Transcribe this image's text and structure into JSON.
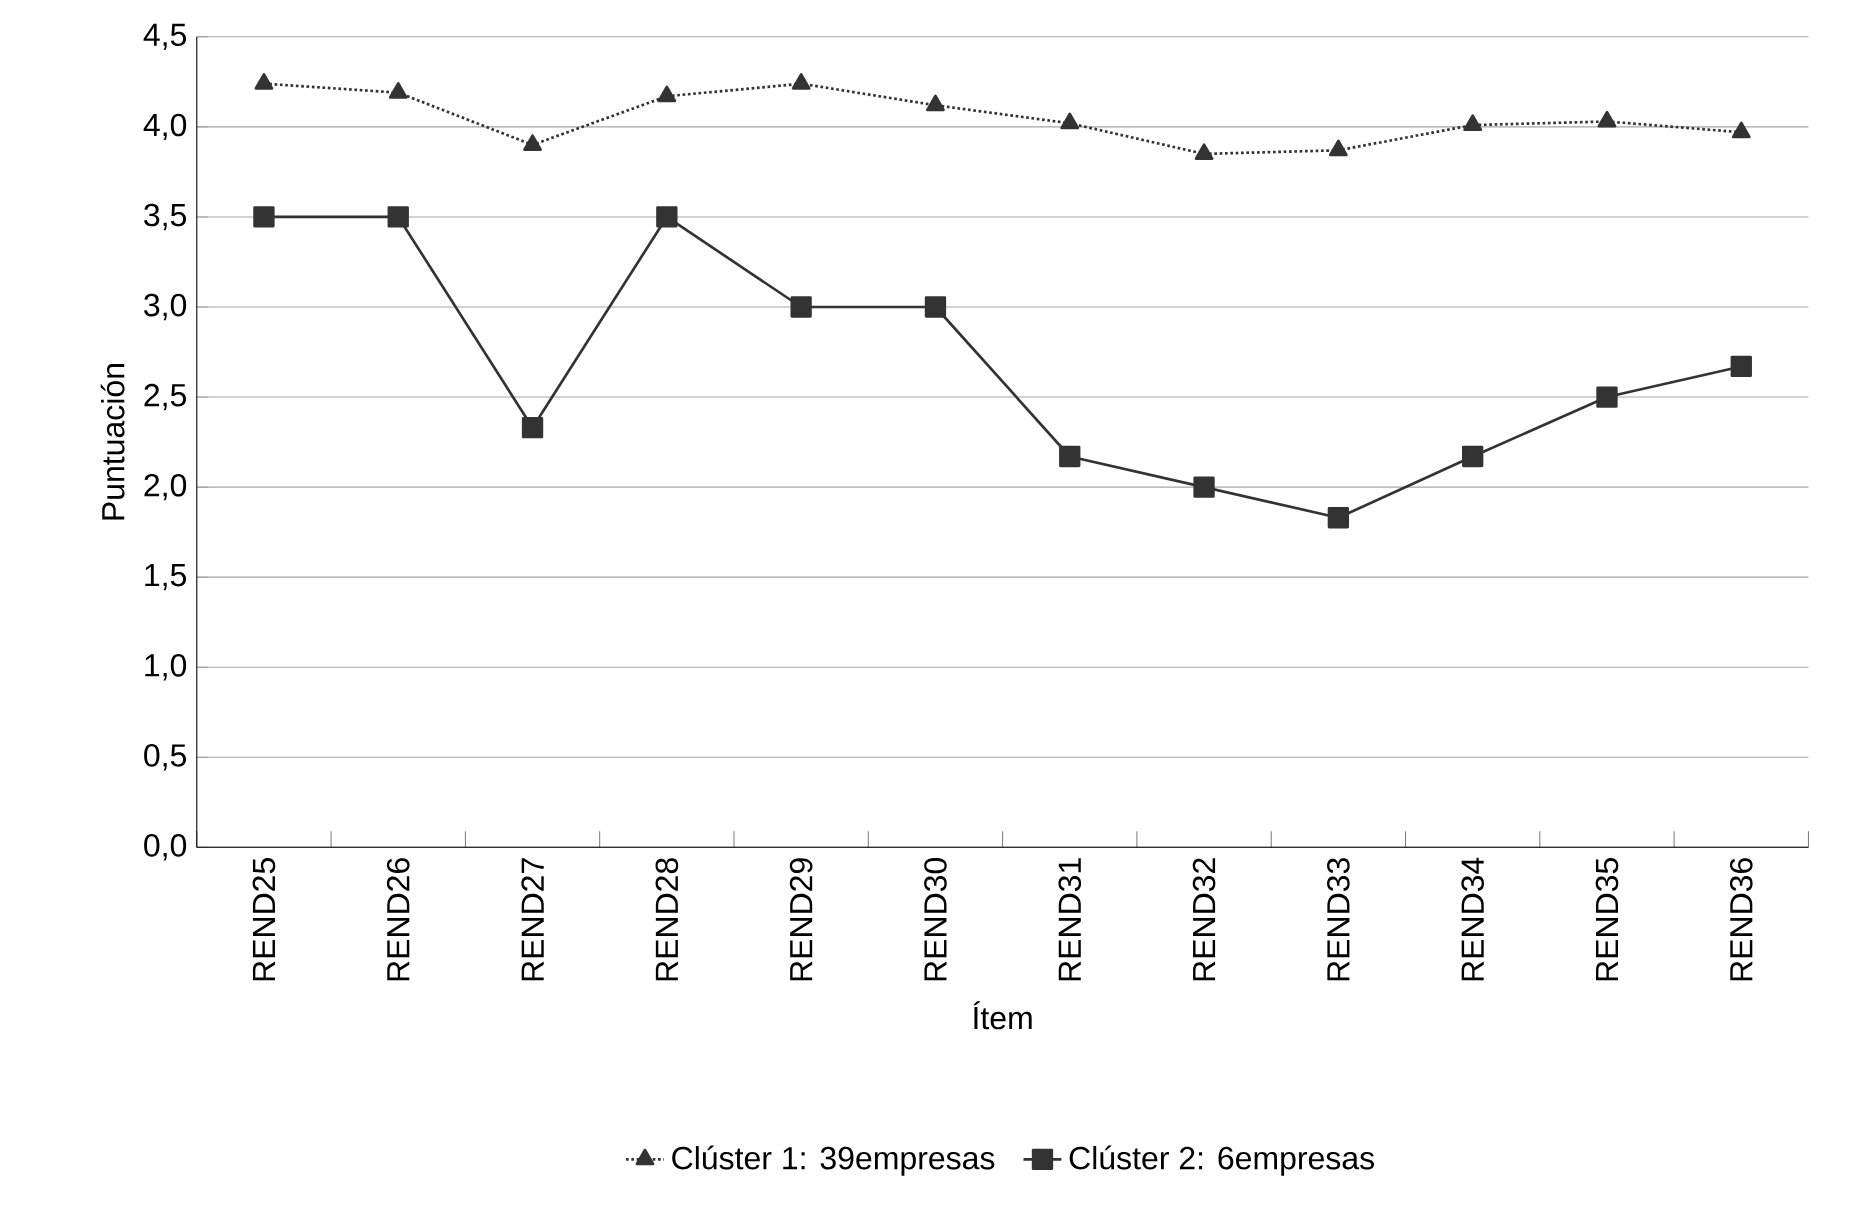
{
  "chart_data": {
    "type": "line",
    "xlabel": "Ítem",
    "ylabel": "Puntuación",
    "categories": [
      "REND25",
      "REND26",
      "REND27",
      "REND28",
      "REND29",
      "REND30",
      "REND31",
      "REND32",
      "REND33",
      "REND34",
      "REND35",
      "REND36"
    ],
    "series": [
      {
        "name": "Clúster 1: 39empresas",
        "color": "#333333",
        "marker": "triangle",
        "line_style": "dotted",
        "values": [
          4.24,
          4.19,
          3.9,
          4.17,
          4.24,
          4.12,
          4.02,
          3.85,
          3.87,
          4.01,
          4.03,
          3.97
        ]
      },
      {
        "name": "Clúster 2: 6empresas",
        "color": "#333333",
        "marker": "square",
        "line_style": "solid",
        "values": [
          3.5,
          3.5,
          2.33,
          3.5,
          3.0,
          3.0,
          2.17,
          2.0,
          1.83,
          2.17,
          2.5,
          2.67
        ]
      }
    ],
    "ylim": [
      0,
      4.5
    ],
    "yticks": [
      {
        "value": 0,
        "label": "0,0"
      },
      {
        "value": 0.5,
        "label": "0,5"
      },
      {
        "value": 1,
        "label": "1,0"
      },
      {
        "value": 1.5,
        "label": "1,5"
      },
      {
        "value": 2,
        "label": "2,0"
      },
      {
        "value": 2.5,
        "label": "2,5"
      },
      {
        "value": 3,
        "label": "3,0"
      },
      {
        "value": 3.5,
        "label": "3,5"
      },
      {
        "value": 4,
        "label": "4,0"
      },
      {
        "value": 4.5,
        "label": "4,5"
      }
    ],
    "grid": "y",
    "legend": "bottom"
  }
}
